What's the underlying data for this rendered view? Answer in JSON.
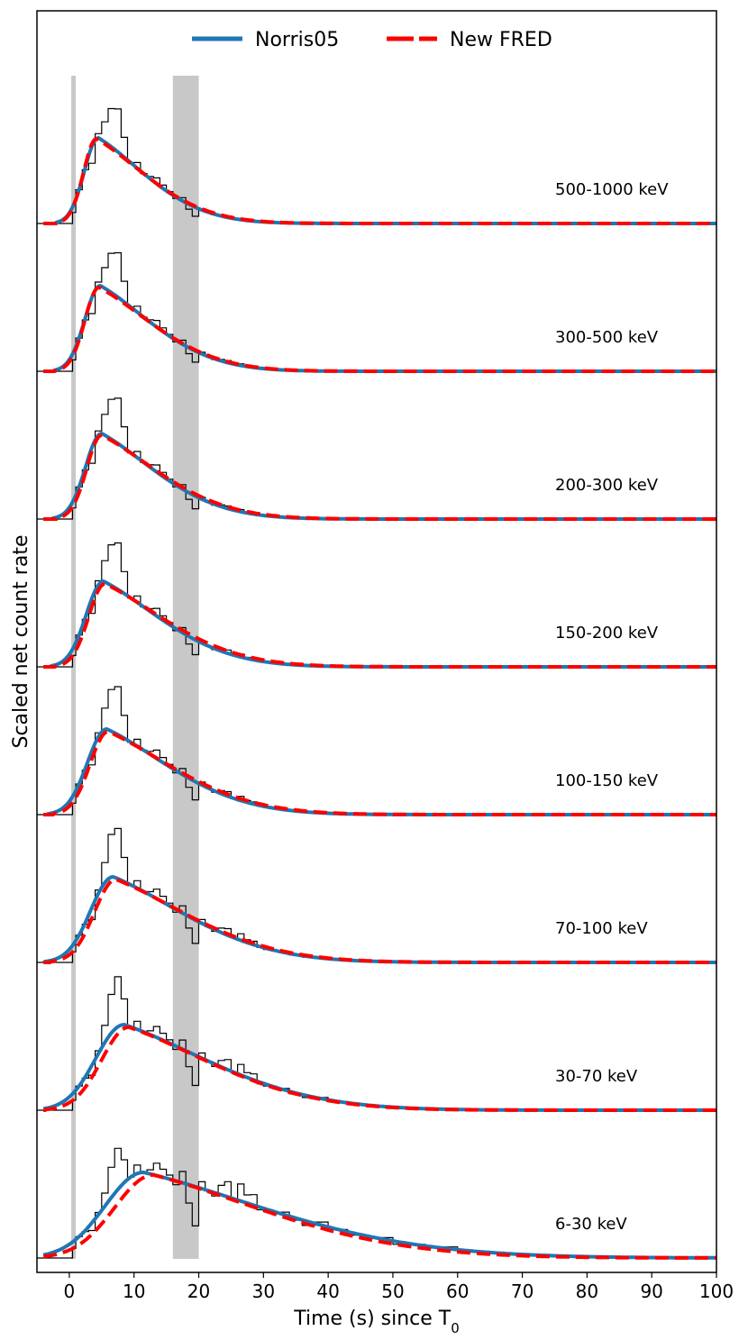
{
  "chart_data": {
    "type": "line",
    "title": "",
    "xlabel": "Time (s) since T",
    "xlabel_subscript": "0",
    "ylabel": "Scaled net count rate",
    "xlim": [
      -5,
      100
    ],
    "xticks": [
      0,
      10,
      20,
      30,
      40,
      50,
      60,
      70,
      80,
      90,
      100
    ],
    "legend": {
      "placement": "top-center",
      "entries": [
        {
          "name": "Norris05",
          "color": "#1f77b4",
          "style": "solid"
        },
        {
          "name": "New FRED",
          "color": "#ff0000",
          "style": "dashed"
        }
      ]
    },
    "shaded_regions": [
      {
        "x0": 0.3,
        "x1": 1.0,
        "color": "#c8c8c8"
      },
      {
        "x0": 16.0,
        "x1": 20.0,
        "color": "#c8c8c8"
      }
    ],
    "panels": [
      {
        "band": "500-1000 keV",
        "norris": {
          "A": 1.0,
          "tpk": 4.5,
          "tau1": 2.2,
          "tau2": 8.0
        },
        "fred": {
          "A": 0.99,
          "tpk": 4.2,
          "tau1": 2.0,
          "tau2": 8.4
        }
      },
      {
        "band": "300-500 keV",
        "norris": {
          "A": 1.0,
          "tpk": 4.8,
          "tau1": 2.4,
          "tau2": 8.6
        },
        "fred": {
          "A": 0.98,
          "tpk": 4.6,
          "tau1": 2.2,
          "tau2": 9.0
        }
      },
      {
        "band": "200-300 keV",
        "norris": {
          "A": 1.0,
          "tpk": 5.0,
          "tau1": 2.5,
          "tau2": 9.0
        },
        "fred": {
          "A": 0.98,
          "tpk": 5.0,
          "tau1": 2.3,
          "tau2": 9.5
        }
      },
      {
        "band": "150-200 keV",
        "norris": {
          "A": 1.0,
          "tpk": 5.3,
          "tau1": 2.7,
          "tau2": 9.6
        },
        "fred": {
          "A": 0.97,
          "tpk": 5.5,
          "tau1": 2.5,
          "tau2": 10.2
        }
      },
      {
        "band": "100-150 keV",
        "norris": {
          "A": 1.0,
          "tpk": 5.8,
          "tau1": 3.0,
          "tau2": 10.5
        },
        "fred": {
          "A": 0.97,
          "tpk": 6.0,
          "tau1": 2.8,
          "tau2": 11.0
        }
      },
      {
        "band": "70-100 keV",
        "norris": {
          "A": 1.0,
          "tpk": 6.8,
          "tau1": 3.5,
          "tau2": 12.0
        },
        "fred": {
          "A": 0.97,
          "tpk": 7.2,
          "tau1": 3.3,
          "tau2": 12.3
        }
      },
      {
        "band": "30-70 keV",
        "norris": {
          "A": 1.0,
          "tpk": 8.5,
          "tau1": 4.4,
          "tau2": 14.5
        },
        "fred": {
          "A": 0.97,
          "tpk": 9.2,
          "tau1": 4.2,
          "tau2": 14.0
        }
      },
      {
        "band": "6-30 keV",
        "norris": {
          "A": 1.0,
          "tpk": 11.5,
          "tau1": 6.0,
          "tau2": 21.0
        },
        "fred": {
          "A": 0.97,
          "tpk": 13.0,
          "tau1": 6.0,
          "tau2": 19.0
        }
      }
    ],
    "histogram_template": {
      "bin_edges": [
        -5,
        0,
        0.5,
        1,
        2,
        3,
        4,
        5,
        6,
        7,
        8,
        9,
        10,
        11,
        12,
        13,
        14,
        15,
        16,
        17,
        18,
        19,
        20,
        21,
        22,
        23,
        24,
        25,
        26,
        27,
        28,
        29,
        30,
        32,
        34,
        36,
        38,
        40,
        43,
        46,
        50,
        55,
        60,
        65,
        70,
        75,
        80,
        85,
        90,
        95,
        100
      ],
      "multipliers": [
        0,
        0,
        0.55,
        1.0,
        0.95,
        0.78,
        1.05,
        1.25,
        1.5,
        1.6,
        1.3,
        1.0,
        1.1,
        1.0,
        1.05,
        1.15,
        1.1,
        1.05,
        0.95,
        1.15,
        0.75,
        0.45,
        1.1,
        1.0,
        0.95,
        1.15,
        1.25,
        1.0,
        1.3,
        1.15,
        1.2,
        0.95,
        0.98,
        1.05,
        0.95,
        0.9,
        1.1,
        1.0,
        0.95,
        1.05,
        0.95,
        1.1,
        1.0,
        1.05,
        1.0,
        1.0,
        1.0,
        1.0,
        1.0,
        1.0
      ]
    }
  }
}
